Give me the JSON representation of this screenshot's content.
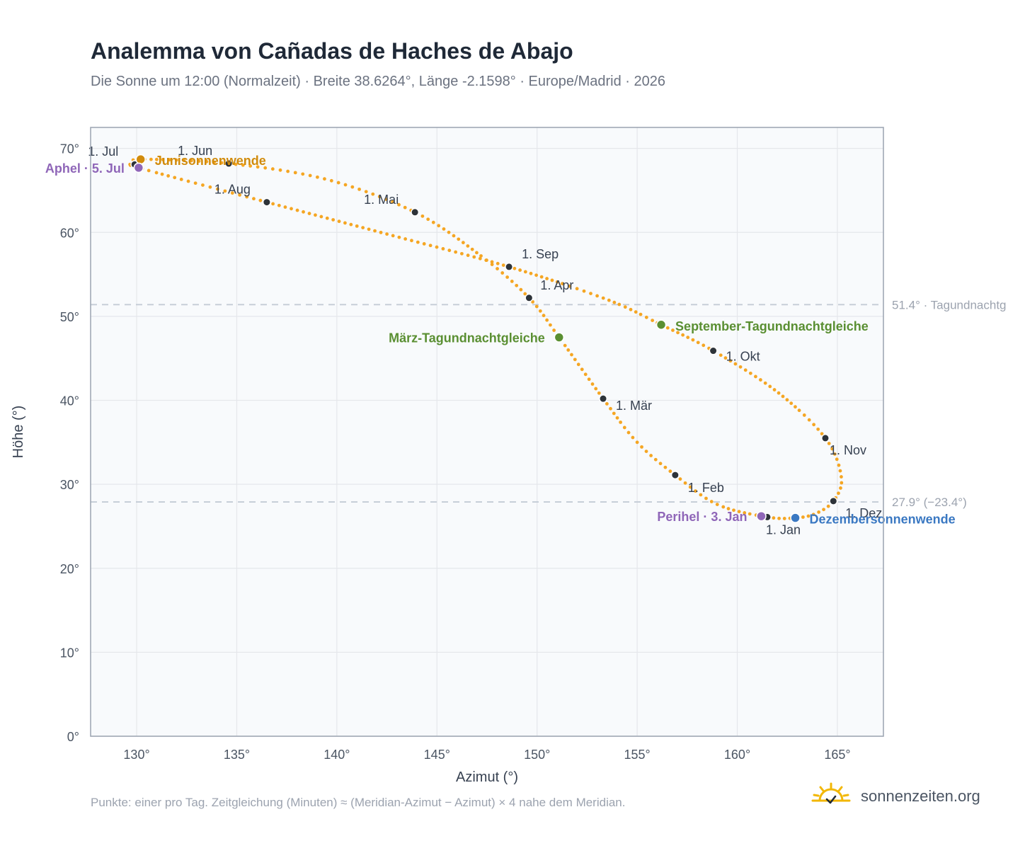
{
  "title": "Analemma von Cañadas de Haches de Abajo",
  "subtitle": "Die Sonne um 12:00 (Normalzeit) · Breite 38.6264°, Länge -2.1598° · Europe/Madrid · 2026",
  "footnote": "Punkte: einer pro Tag. Zeitgleichung (Minuten) ≈ (Meridian-Azimut − Azimut) × 4 nahe dem Meridian.",
  "brand": "sonnenzeiten.org",
  "colors": {
    "curve": "#f5a623",
    "month_marker": "#2d3339",
    "solstice_june": "#d18b0c",
    "solstice_december": "#3a78c2",
    "equinox": "#5a8f32",
    "perihelion_aphelion": "#8f66b8",
    "plot_background": "#f8fafc",
    "grid": "#e5e7eb",
    "reference_line": "#c4ccd6",
    "frame": "#9aa3b0"
  },
  "chart_data": {
    "type": "scatter",
    "xlabel": "Azimut (°)",
    "ylabel": "Höhe (°)",
    "xlim": [
      127.7,
      167.3
    ],
    "ylim": [
      0,
      72.5
    ],
    "x_ticks": [
      130,
      135,
      140,
      145,
      150,
      155,
      160,
      165
    ],
    "x_tick_labels": [
      "130°",
      "135°",
      "140°",
      "145°",
      "150°",
      "155°",
      "160°",
      "165°"
    ],
    "y_ticks": [
      0,
      10,
      20,
      30,
      40,
      50,
      60,
      70
    ],
    "y_tick_labels": [
      "0°",
      "10°",
      "20°",
      "30°",
      "40°",
      "50°",
      "60°",
      "70°"
    ],
    "grid": true,
    "reference_lines": [
      {
        "y": 51.4,
        "label": "51.4° · Tagundnachtg"
      },
      {
        "y": 27.9,
        "label": "27.9° (−23.4°)"
      }
    ],
    "month_markers": [
      {
        "label": "1. Jan",
        "x": 161.5,
        "y": 26.1
      },
      {
        "label": "1. Feb",
        "x": 156.9,
        "y": 31.1
      },
      {
        "label": "1. Mär",
        "x": 153.3,
        "y": 40.2
      },
      {
        "label": "1. Apr",
        "x": 149.6,
        "y": 52.2
      },
      {
        "label": "1. Mai",
        "x": 143.9,
        "y": 62.4
      },
      {
        "label": "1. Jun",
        "x": 134.6,
        "y": 68.2
      },
      {
        "label": "1. Jul",
        "x": 129.9,
        "y": 68.1
      },
      {
        "label": "1. Aug",
        "x": 136.5,
        "y": 63.6
      },
      {
        "label": "1. Sep",
        "x": 148.6,
        "y": 55.9
      },
      {
        "label": "1. Okt",
        "x": 158.8,
        "y": 45.9
      },
      {
        "label": "1. Nov",
        "x": 164.4,
        "y": 35.5
      },
      {
        "label": "1. Dez",
        "x": 164.8,
        "y": 28.0
      }
    ],
    "events": [
      {
        "label": "Junisonnenwende",
        "x": 130.2,
        "y": 68.7,
        "kind": "solstice_june"
      },
      {
        "label": "Dezembersonnenwende",
        "x": 162.9,
        "y": 26.0,
        "kind": "solstice_december"
      },
      {
        "label": "März-Tagundnachtgleiche",
        "x": 151.1,
        "y": 47.5,
        "kind": "equinox"
      },
      {
        "label": "September-Tagundnachtgleiche",
        "x": 156.2,
        "y": 49.0,
        "kind": "equinox"
      },
      {
        "label": "Perihel · 3. Jan",
        "x": 161.2,
        "y": 26.2,
        "kind": "perihelion_aphelion"
      },
      {
        "label": "Aphel · 5. Jul",
        "x": 130.1,
        "y": 67.7,
        "kind": "perihelion_aphelion"
      }
    ],
    "curve_anchor_points": [
      {
        "x": 162.9,
        "y": 26.0
      },
      {
        "x": 161.5,
        "y": 26.1
      },
      {
        "x": 159.0,
        "y": 27.6
      },
      {
        "x": 156.9,
        "y": 31.1
      },
      {
        "x": 155.0,
        "y": 35.0
      },
      {
        "x": 153.3,
        "y": 40.2
      },
      {
        "x": 151.1,
        "y": 47.5
      },
      {
        "x": 149.6,
        "y": 52.2
      },
      {
        "x": 147.2,
        "y": 57.2
      },
      {
        "x": 143.9,
        "y": 62.4
      },
      {
        "x": 139.5,
        "y": 66.3
      },
      {
        "x": 134.6,
        "y": 68.2
      },
      {
        "x": 130.2,
        "y": 68.7
      },
      {
        "x": 129.9,
        "y": 68.1
      },
      {
        "x": 130.1,
        "y": 67.7
      },
      {
        "x": 136.5,
        "y": 63.6
      },
      {
        "x": 142.5,
        "y": 59.8
      },
      {
        "x": 148.6,
        "y": 55.9
      },
      {
        "x": 153.5,
        "y": 52.0
      },
      {
        "x": 156.2,
        "y": 49.0
      },
      {
        "x": 158.8,
        "y": 45.9
      },
      {
        "x": 162.0,
        "y": 41.0
      },
      {
        "x": 164.4,
        "y": 35.5
      },
      {
        "x": 165.2,
        "y": 30.8
      },
      {
        "x": 164.8,
        "y": 28.0
      },
      {
        "x": 163.9,
        "y": 26.5
      },
      {
        "x": 162.9,
        "y": 26.0
      }
    ]
  }
}
